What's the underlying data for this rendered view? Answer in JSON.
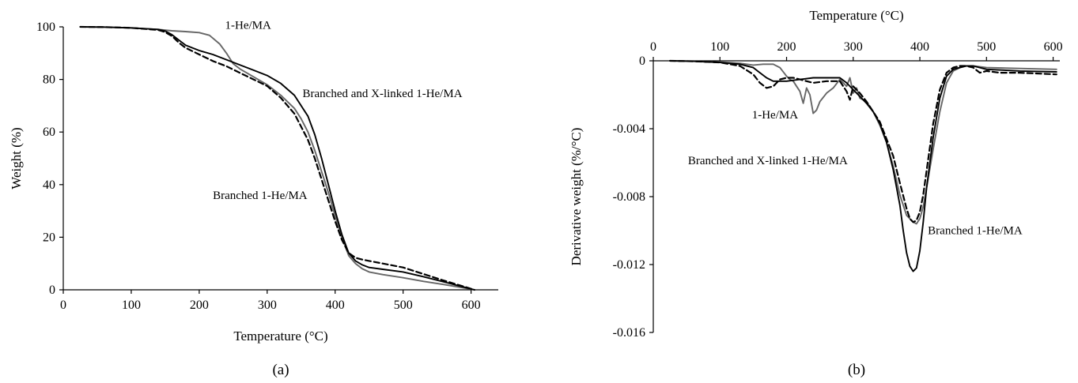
{
  "chart_data": [
    {
      "type": "line",
      "panel_label": "(a)",
      "xlabel": "Temperature (°C)",
      "ylabel": "Weight (%)",
      "xlim": [
        0,
        640
      ],
      "ylim": [
        0,
        100
      ],
      "xticks": [
        0,
        100,
        200,
        300,
        400,
        500,
        600
      ],
      "yticks": [
        0,
        20,
        40,
        60,
        80,
        100
      ],
      "grid": false,
      "legend": "none",
      "series": [
        {
          "name": "1-He/MA",
          "color": "#666666",
          "dash": "solid",
          "x": [
            25,
            60,
            100,
            140,
            160,
            180,
            200,
            215,
            230,
            240,
            250,
            260,
            280,
            300,
            320,
            340,
            350,
            360,
            370,
            380,
            390,
            400,
            410,
            420,
            430,
            440,
            450,
            470,
            500,
            530,
            560,
            590,
            605
          ],
          "y": [
            100,
            99.9,
            99.6,
            99,
            98.5,
            98.2,
            97.8,
            96.8,
            93.5,
            90,
            86,
            84,
            81,
            78,
            74,
            69,
            65,
            60,
            53,
            45,
            37,
            28,
            20,
            13,
            10,
            8,
            6.8,
            5.8,
            4.6,
            3.2,
            2,
            0.7,
            0
          ]
        },
        {
          "name": "Branched and X-linked 1-He/MA",
          "color": "#000000",
          "dash": "solid",
          "x": [
            25,
            60,
            100,
            140,
            150,
            160,
            170,
            180,
            200,
            220,
            240,
            260,
            280,
            300,
            320,
            340,
            360,
            370,
            380,
            390,
            400,
            410,
            420,
            430,
            440,
            450,
            470,
            500,
            530,
            560,
            590,
            605
          ],
          "y": [
            100,
            99.9,
            99.6,
            99,
            98.4,
            97,
            95,
            93,
            91,
            89.5,
            87.5,
            85.5,
            83.5,
            81.5,
            78.5,
            74,
            66,
            59,
            50,
            40,
            30,
            21,
            14,
            11,
            9.5,
            8.5,
            7.8,
            6.8,
            5,
            3,
            1,
            0
          ]
        },
        {
          "name": "Branched 1-He/MA",
          "color": "#000000",
          "dash": "dashed",
          "x": [
            25,
            60,
            100,
            140,
            150,
            160,
            170,
            180,
            200,
            220,
            240,
            260,
            280,
            300,
            320,
            340,
            360,
            370,
            380,
            390,
            400,
            410,
            420,
            430,
            440,
            450,
            470,
            500,
            530,
            560,
            590,
            605
          ],
          "y": [
            100,
            99.9,
            99.6,
            98.8,
            98,
            96.5,
            94,
            92,
            89.5,
            87,
            85,
            82.5,
            80,
            77.5,
            73,
            67,
            57,
            50,
            42,
            34,
            26,
            19,
            14,
            12.2,
            11.5,
            11,
            10,
            8.5,
            6,
            3.5,
            1.2,
            0
          ]
        }
      ],
      "annotations": [
        {
          "text": "1-He/MA",
          "x": 238,
          "y": 99.2
        },
        {
          "text": "Branched and X-linked 1-He/MA",
          "x": 352,
          "y": 73.2
        },
        {
          "text": "Branched 1-He/MA",
          "x": 220,
          "y": 34.5
        }
      ]
    },
    {
      "type": "line",
      "panel_label": "(b)",
      "xlabel": "Temperature (°C)",
      "ylabel": "Derivative weight (%/°C)",
      "xlim": [
        0,
        610
      ],
      "ylim": [
        -0.016,
        0
      ],
      "xticks": [
        0,
        100,
        200,
        300,
        400,
        500,
        600
      ],
      "yticks": [
        0,
        -0.004,
        -0.008,
        -0.012,
        -0.016
      ],
      "ytick_labels": [
        "0",
        "-0.004",
        "-0.008",
        "-0.012",
        "-0.016"
      ],
      "xaxis_position": "top",
      "grid": false,
      "legend": "none",
      "series": [
        {
          "name": "1-He/MA",
          "color": "#666666",
          "dash": "solid",
          "x": [
            25,
            60,
            100,
            130,
            150,
            165,
            180,
            190,
            200,
            205,
            210,
            215,
            220,
            225,
            230,
            235,
            240,
            245,
            250,
            260,
            270,
            280,
            290,
            295,
            300,
            305,
            310,
            320,
            330,
            340,
            350,
            360,
            370,
            380,
            390,
            395,
            400,
            405,
            410,
            420,
            430,
            440,
            450,
            460,
            470,
            480,
            500,
            550,
            605
          ],
          "y": [
            0,
            -3e-05,
            -8e-05,
            -0.00015,
            -0.00025,
            -0.0002,
            -0.0002,
            -0.0004,
            -0.0009,
            -0.0011,
            -0.0012,
            -0.0015,
            -0.0018,
            -0.0025,
            -0.0016,
            -0.002,
            -0.0031,
            -0.0029,
            -0.0024,
            -0.0019,
            -0.0016,
            -0.0011,
            -0.0015,
            -0.001,
            -0.0019,
            -0.0016,
            -0.0022,
            -0.0024,
            -0.003,
            -0.0038,
            -0.0048,
            -0.0062,
            -0.0079,
            -0.0091,
            -0.0095,
            -0.0096,
            -0.0093,
            -0.0086,
            -0.0075,
            -0.0052,
            -0.003,
            -0.0013,
            -0.0006,
            -0.0004,
            -0.0003,
            -0.0003,
            -0.0004,
            -0.00045,
            -0.0005
          ]
        },
        {
          "name": "Branched and X-linked 1-He/MA",
          "color": "#000000",
          "dash": "solid",
          "x": [
            25,
            60,
            100,
            130,
            150,
            160,
            170,
            180,
            200,
            220,
            240,
            260,
            280,
            290,
            300,
            310,
            320,
            330,
            340,
            350,
            360,
            370,
            375,
            380,
            385,
            390,
            395,
            400,
            405,
            410,
            420,
            430,
            440,
            450,
            460,
            470,
            480,
            500,
            550,
            605
          ],
          "y": [
            0,
            -3e-05,
            -0.0001,
            -0.0002,
            -0.0004,
            -0.0007,
            -0.001,
            -0.0012,
            -0.0012,
            -0.0011,
            -0.001,
            -0.001,
            -0.001,
            -0.0013,
            -0.0017,
            -0.0021,
            -0.0025,
            -0.003,
            -0.0037,
            -0.0048,
            -0.0064,
            -0.0085,
            -0.01,
            -0.0113,
            -0.0121,
            -0.0124,
            -0.0122,
            -0.0112,
            -0.0095,
            -0.0075,
            -0.0045,
            -0.0022,
            -0.0009,
            -0.0005,
            -0.0004,
            -0.0003,
            -0.0003,
            -0.0005,
            -0.0006,
            -0.00065
          ]
        },
        {
          "name": "Branched 1-He/MA",
          "color": "#000000",
          "dash": "dashed",
          "x": [
            25,
            60,
            100,
            130,
            150,
            160,
            170,
            180,
            190,
            200,
            210,
            220,
            240,
            260,
            280,
            290,
            295,
            300,
            310,
            320,
            340,
            360,
            370,
            380,
            385,
            390,
            395,
            400,
            405,
            410,
            420,
            430,
            440,
            450,
            460,
            470,
            480,
            490,
            500,
            520,
            550,
            605
          ],
          "y": [
            0,
            -3e-05,
            -0.0001,
            -0.0003,
            -0.0008,
            -0.0013,
            -0.0016,
            -0.0015,
            -0.0011,
            -0.001,
            -0.001,
            -0.0011,
            -0.0013,
            -0.0012,
            -0.0012,
            -0.0018,
            -0.0023,
            -0.0015,
            -0.0019,
            -0.0024,
            -0.0036,
            -0.0056,
            -0.0072,
            -0.0087,
            -0.0093,
            -0.0095,
            -0.0094,
            -0.0089,
            -0.0079,
            -0.0065,
            -0.0037,
            -0.0017,
            -0.0007,
            -0.0004,
            -0.0003,
            -0.0003,
            -0.0004,
            -0.0007,
            -0.0006,
            -0.0007,
            -0.0007,
            -0.0008
          ]
        }
      ],
      "annotations": [
        {
          "text": "1-He/MA",
          "x": 148,
          "y": -0.0034
        },
        {
          "text": "Branched and X-linked 1-He/MA",
          "x": 52,
          "y": -0.0061
        },
        {
          "text": "Branched 1-He/MA",
          "x": 412,
          "y": -0.0102
        }
      ]
    }
  ]
}
